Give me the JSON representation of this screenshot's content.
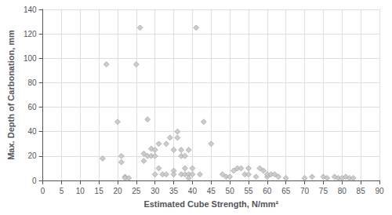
{
  "chart_data": {
    "type": "scatter",
    "x": [
      16,
      17,
      20,
      21,
      21,
      22,
      22,
      23,
      25,
      26,
      27,
      27,
      28,
      28,
      29,
      29,
      30,
      30,
      30,
      31,
      31,
      32,
      33,
      33,
      34,
      35,
      35,
      35,
      36,
      36,
      37,
      37,
      37,
      38,
      38,
      38,
      39,
      39,
      39,
      40,
      40,
      41,
      42,
      43,
      45,
      48,
      49,
      50,
      51,
      52,
      53,
      54,
      55,
      55,
      57,
      58,
      59,
      60,
      60,
      61,
      62,
      63,
      65,
      70,
      72,
      75,
      76,
      78,
      79,
      80,
      81,
      82,
      83
    ],
    "values": [
      18,
      95,
      48,
      20,
      15,
      3,
      2,
      2,
      95,
      125,
      22,
      16,
      20,
      50,
      26,
      20,
      25,
      20,
      5,
      30,
      10,
      5,
      30,
      5,
      35,
      25,
      8,
      5,
      35,
      40,
      25,
      20,
      5,
      20,
      10,
      5,
      25,
      5,
      2,
      10,
      5,
      125,
      5,
      48,
      30,
      5,
      3,
      3,
      8,
      10,
      10,
      5,
      10,
      5,
      3,
      10,
      8,
      3,
      5,
      5,
      5,
      3,
      2,
      2,
      3,
      3,
      2,
      3,
      2,
      2,
      3,
      2,
      2
    ],
    "xlabel": "Estimated Cube Strength, N/mm²",
    "ylabel": "Max. Depth of Carbonation, mm",
    "xlim": [
      0,
      90
    ],
    "ylim": [
      0,
      140
    ],
    "xticks": [
      0,
      5,
      10,
      15,
      20,
      25,
      30,
      35,
      40,
      45,
      50,
      55,
      60,
      65,
      70,
      75,
      80,
      85,
      90
    ],
    "yticks": [
      0,
      20,
      40,
      60,
      80,
      100,
      120,
      140
    ],
    "grid": true,
    "marker": "diamond",
    "color": "#cccccc"
  }
}
